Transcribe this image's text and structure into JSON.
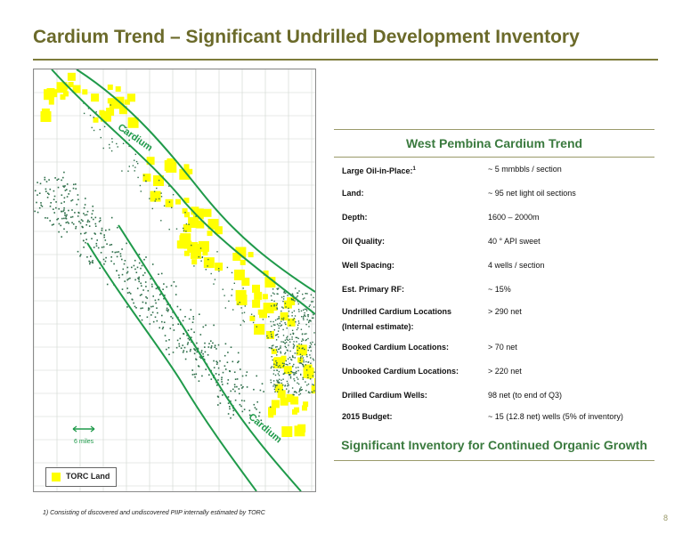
{
  "slide": {
    "title": "Cardium Trend – Significant Undrilled Development Inventory",
    "page_number": "8",
    "footnote": "1) Consisting of discovered and undiscovered PIIP internally estimated by TORC"
  },
  "map": {
    "label_top": "Cardium",
    "label_bottom": "Cardium",
    "scale": "6 miles",
    "legend": "TORC Land",
    "colors": {
      "land": "#ffff00",
      "trend": "#1f9a4a",
      "wells": "#2e6e4a",
      "grid": "#cfd6cf"
    }
  },
  "panel": {
    "title": "West Pembina Cardium Trend",
    "footer": "Significant Inventory for Continued Organic Growth",
    "rows": [
      {
        "label": "Large Oil-in-Place:",
        "sup": "1",
        "value": "~ 5 mmbbls / section"
      },
      {
        "label": "Land:",
        "value": "~ 95 net light oil sections"
      },
      {
        "label": "Depth:",
        "value": "1600 – 2000m"
      },
      {
        "label": "Oil Quality:",
        "value": "40 ° API sweet"
      },
      {
        "label": "Well Spacing:",
        "value": "4 wells / section"
      },
      {
        "label": "Est. Primary RF:",
        "value": "~ 15%"
      },
      {
        "label": "Undrilled Cardium Locations",
        "label2": "(Internal estimate):",
        "value": "> 290 net"
      },
      {
        "label": "Booked Cardium Locations:",
        "value": "> 70 net"
      },
      {
        "label": "Unbooked Cardium Locations:",
        "value": "> 220 net"
      },
      {
        "label": "Drilled Cardium Wells:",
        "value": "98 net (to end of Q3)"
      },
      {
        "label": "2015 Budget:",
        "value": "~ 15 (12.8 net) wells (5% of inventory)"
      }
    ]
  }
}
